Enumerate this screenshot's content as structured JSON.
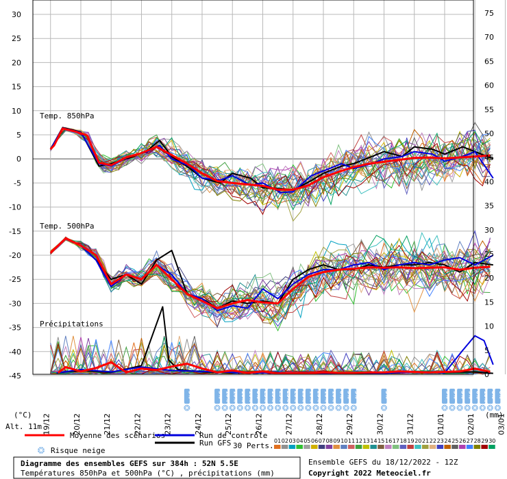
{
  "chart_data": {
    "type": "line",
    "title": "Diagramme des ensembles GEFS sur 384h : 52N 5.5E",
    "subtitle": "Températures 850hPa et 500hPa (°C) , précipitations (mm)",
    "run_info": "Ensemble GEFS du 18/12/2022 - 12Z",
    "copyright": "Copyright 2022 Meteociel.fr",
    "left_axis": {
      "unit_label": "(°C)",
      "ylim": [
        -45,
        30
      ],
      "ticks": [
        30,
        25,
        20,
        15,
        10,
        5,
        0,
        -5,
        -10,
        -15,
        -20,
        -25,
        -30,
        -35,
        -40,
        -45
      ]
    },
    "right_axis": {
      "unit_label": "(mm)",
      "ylim": [
        0,
        75
      ],
      "ticks": [
        75,
        70,
        65,
        60,
        55,
        50,
        45,
        40,
        35,
        30,
        25,
        20,
        15,
        10,
        5,
        0
      ]
    },
    "altitude_label": "Alt. 11m",
    "x_dates": [
      "19/12",
      "20/12",
      "21/12",
      "22/12",
      "23/12",
      "24/12",
      "25/12",
      "26/12",
      "27/12",
      "28/12",
      "29/12",
      "30/12",
      "31/12",
      "01/01",
      "02/01",
      "03/01"
    ],
    "panel_labels": {
      "t850": "Temp. 850hPa",
      "t500": "Temp. 500hPa",
      "precip": "Précipitations"
    },
    "legend": {
      "mean": "Moyenne des scénarios",
      "control": "Run de contrôle",
      "gfs": "Run GFS",
      "perts": "30 Perts.",
      "snow": "Risque neige",
      "pert_numbers": [
        "01",
        "02",
        "03",
        "04",
        "05",
        "06",
        "07",
        "08",
        "09",
        "10",
        "11",
        "12",
        "13",
        "14",
        "15",
        "16",
        "17",
        "18",
        "19",
        "20",
        "21",
        "22",
        "23",
        "24",
        "25",
        "26",
        "27",
        "28",
        "29",
        "30"
      ]
    },
    "colors": {
      "mean": "#ff0000",
      "control": "#0000dd",
      "gfs": "#000000",
      "grid": "#b8b8b8",
      "snow": "#7fb4e8",
      "perts": [
        "#e07020",
        "#909090",
        "#00a0c0",
        "#30c030",
        "#a0a0a0",
        "#d0b000",
        "#404080",
        "#8040a0",
        "#e09040",
        "#6080c0",
        "#d06060",
        "#40a040",
        "#c0c000",
        "#209090",
        "#806040",
        "#c080c0",
        "#80c080",
        "#6060c0",
        "#c04040",
        "#40c0c0",
        "#a0a040",
        "#e0b080",
        "#4040c0",
        "#c06000",
        "#606060",
        "#b040b0",
        "#4080ff",
        "#808000",
        "#a00000",
        "#00a060"
      ]
    },
    "series_mean": {
      "t850": [
        [
          0,
          2
        ],
        [
          0.12,
          2.8
        ],
        [
          0.4,
          6.3
        ],
        [
          0.8,
          5.7
        ],
        [
          1.2,
          4.9
        ],
        [
          1.6,
          -0.8
        ],
        [
          2,
          -1.3
        ],
        [
          2.5,
          0.3
        ],
        [
          3,
          1.2
        ],
        [
          3.5,
          2.5
        ],
        [
          4,
          0.8
        ],
        [
          4.5,
          -1
        ],
        [
          5,
          -3
        ],
        [
          5.5,
          -4.6
        ],
        [
          6,
          -5
        ],
        [
          6.5,
          -5.3
        ],
        [
          7,
          -5.6
        ],
        [
          7.5,
          -6.4
        ],
        [
          8,
          -6.4
        ],
        [
          8.5,
          -5.5
        ],
        [
          9,
          -3.8
        ],
        [
          9.5,
          -2.7
        ],
        [
          10,
          -1.7
        ],
        [
          10.5,
          -1
        ],
        [
          11,
          -0.6
        ],
        [
          11.5,
          -0.2
        ],
        [
          12,
          0.2
        ],
        [
          12.5,
          0.3
        ],
        [
          13,
          0.1
        ],
        [
          13.5,
          0.3
        ],
        [
          14,
          0.5
        ],
        [
          14.5,
          0.7
        ]
      ],
      "t500": [
        [
          0,
          -19.5
        ],
        [
          0.5,
          -16.5
        ],
        [
          1,
          -18
        ],
        [
          1.5,
          -20
        ],
        [
          2,
          -26
        ],
        [
          2.5,
          -24
        ],
        [
          3,
          -25
        ],
        [
          3.5,
          -22
        ],
        [
          4,
          -25
        ],
        [
          4.5,
          -28
        ],
        [
          5,
          -29.5
        ],
        [
          5.5,
          -31
        ],
        [
          6,
          -30
        ],
        [
          6.5,
          -29.3
        ],
        [
          7,
          -29.8
        ],
        [
          7.5,
          -30
        ],
        [
          8,
          -27
        ],
        [
          8.5,
          -24.5
        ],
        [
          9,
          -23.5
        ],
        [
          9.5,
          -23
        ],
        [
          10,
          -22.8
        ],
        [
          10.5,
          -22.5
        ],
        [
          11,
          -22.6
        ],
        [
          11.5,
          -22.5
        ],
        [
          12,
          -22.7
        ],
        [
          12.5,
          -22.6
        ],
        [
          13,
          -22.5
        ],
        [
          13.5,
          -23
        ],
        [
          14,
          -22.6
        ],
        [
          14.5,
          -22.4
        ]
      ],
      "precip": [
        [
          0.25,
          0.3
        ],
        [
          0.5,
          1.5
        ],
        [
          1,
          0.6
        ],
        [
          1.5,
          1.3
        ],
        [
          2,
          2.5
        ],
        [
          2.5,
          0.4
        ],
        [
          3,
          1.2
        ],
        [
          3.5,
          0.9
        ],
        [
          4,
          1.6
        ],
        [
          4.5,
          2.2
        ],
        [
          5,
          1.2
        ],
        [
          5.5,
          0.4
        ],
        [
          6,
          0.8
        ],
        [
          6.5,
          0.3
        ],
        [
          7,
          0.6
        ],
        [
          7.5,
          0.2
        ],
        [
          8,
          0.3
        ],
        [
          8.5,
          0.2
        ],
        [
          9,
          0.4
        ],
        [
          9.5,
          0.3
        ],
        [
          10,
          0.3
        ],
        [
          10.5,
          0.4
        ],
        [
          11,
          0.4
        ],
        [
          11.5,
          0.6
        ],
        [
          12,
          0.5
        ],
        [
          12.5,
          0.4
        ],
        [
          13,
          0.5
        ],
        [
          13.5,
          0.6
        ],
        [
          14,
          1.2
        ],
        [
          14.5,
          0.5
        ]
      ]
    },
    "series_control": {
      "t850": [
        [
          0,
          2
        ],
        [
          0.4,
          6.4
        ],
        [
          1,
          5.5
        ],
        [
          1.6,
          -1
        ],
        [
          2,
          -1.5
        ],
        [
          2.6,
          0.5
        ],
        [
          3.2,
          1.5
        ],
        [
          3.6,
          2.8
        ],
        [
          4,
          0
        ],
        [
          4.6,
          -1.5
        ],
        [
          5,
          -4
        ],
        [
          5.6,
          -4.4
        ],
        [
          6,
          -3.5
        ],
        [
          6.6,
          -5.5
        ],
        [
          7,
          -5
        ],
        [
          7.6,
          -7
        ],
        [
          8,
          -6.8
        ],
        [
          8.6,
          -3.5
        ],
        [
          9,
          -2.5
        ],
        [
          9.6,
          -1
        ],
        [
          10,
          -2
        ],
        [
          10.6,
          -1
        ],
        [
          11,
          0
        ],
        [
          11.6,
          0.5
        ],
        [
          12,
          1.5
        ],
        [
          12.6,
          1
        ],
        [
          13,
          -0.5
        ],
        [
          13.6,
          0.5
        ],
        [
          14,
          1.5
        ],
        [
          14.6,
          -4
        ]
      ],
      "t500": [
        [
          0,
          -19.5
        ],
        [
          0.5,
          -16.5
        ],
        [
          1,
          -18
        ],
        [
          1.5,
          -21
        ],
        [
          2,
          -26.5
        ],
        [
          2.5,
          -24
        ],
        [
          3,
          -25
        ],
        [
          3.5,
          -22
        ],
        [
          4,
          -24
        ],
        [
          4.5,
          -28
        ],
        [
          5,
          -29
        ],
        [
          5.5,
          -31.5
        ],
        [
          6,
          -30.5
        ],
        [
          6.5,
          -31
        ],
        [
          7,
          -27
        ],
        [
          7.5,
          -29
        ],
        [
          8,
          -26
        ],
        [
          8.5,
          -24
        ],
        [
          9,
          -23
        ],
        [
          9.5,
          -23
        ],
        [
          10,
          -22
        ],
        [
          10.5,
          -21.5
        ],
        [
          11,
          -23
        ],
        [
          11.5,
          -22
        ],
        [
          12,
          -21.5
        ],
        [
          12.5,
          -22
        ],
        [
          13,
          -21
        ],
        [
          13.5,
          -20.5
        ],
        [
          14,
          -22
        ],
        [
          14.6,
          -20
        ]
      ],
      "precip": [
        [
          0.2,
          0.3
        ],
        [
          1,
          1
        ],
        [
          2,
          0.5
        ],
        [
          3,
          1.5
        ],
        [
          4,
          0.8
        ],
        [
          5,
          0.6
        ],
        [
          6,
          0.4
        ],
        [
          7,
          0.3
        ],
        [
          8,
          0.4
        ],
        [
          9,
          0.2
        ],
        [
          10,
          0.3
        ],
        [
          11,
          0.2
        ],
        [
          12,
          0.5
        ],
        [
          13,
          0.3
        ],
        [
          13.6,
          5
        ],
        [
          14,
          8
        ],
        [
          14.3,
          7
        ],
        [
          14.6,
          2
        ]
      ]
    },
    "series_gfs": {
      "t850": [
        [
          0,
          2
        ],
        [
          0.4,
          6.5
        ],
        [
          1,
          5.6
        ],
        [
          1.6,
          -1.5
        ],
        [
          2,
          -1
        ],
        [
          2.6,
          0.2
        ],
        [
          3.2,
          1.8
        ],
        [
          3.6,
          3.8
        ],
        [
          4,
          0.5
        ],
        [
          4.6,
          -2
        ],
        [
          5,
          -4
        ],
        [
          5.6,
          -5
        ],
        [
          6,
          -3
        ],
        [
          6.6,
          -4
        ],
        [
          7,
          -6
        ],
        [
          7.6,
          -6.2
        ],
        [
          8,
          -6.5
        ],
        [
          8.6,
          -4.5
        ],
        [
          9,
          -3
        ],
        [
          9.6,
          -1.5
        ],
        [
          10,
          -1
        ],
        [
          10.6,
          0.5
        ],
        [
          11,
          1.5
        ],
        [
          11.6,
          0.5
        ],
        [
          12,
          2.5
        ],
        [
          12.6,
          2
        ],
        [
          13,
          1
        ],
        [
          13.6,
          2.5
        ],
        [
          14,
          1.5
        ],
        [
          14.6,
          0
        ]
      ],
      "t500": [
        [
          0,
          -19.5
        ],
        [
          0.5,
          -16.5
        ],
        [
          1,
          -18
        ],
        [
          1.5,
          -21
        ],
        [
          2,
          -25
        ],
        [
          2.5,
          -24
        ],
        [
          3,
          -26
        ],
        [
          3.5,
          -21
        ],
        [
          4,
          -19
        ],
        [
          4.5,
          -28
        ],
        [
          5,
          -29
        ],
        [
          5.5,
          -31
        ],
        [
          6,
          -29.5
        ],
        [
          6.5,
          -30
        ],
        [
          7,
          -29.5
        ],
        [
          7.5,
          -30
        ],
        [
          8,
          -25
        ],
        [
          8.5,
          -23
        ],
        [
          9,
          -22
        ],
        [
          9.5,
          -23
        ],
        [
          10,
          -23
        ],
        [
          10.5,
          -22
        ],
        [
          11,
          -22.5
        ],
        [
          11.5,
          -22
        ],
        [
          12,
          -22
        ],
        [
          12.5,
          -21.5
        ],
        [
          13,
          -22
        ],
        [
          13.5,
          -23.5
        ],
        [
          14,
          -21.5
        ],
        [
          14.6,
          -22
        ]
      ],
      "precip": [
        [
          0.2,
          0.3
        ],
        [
          1,
          0.8
        ],
        [
          2,
          0.4
        ],
        [
          3,
          1.8
        ],
        [
          3.7,
          14
        ],
        [
          3.9,
          3
        ],
        [
          4.2,
          1
        ],
        [
          5,
          0.5
        ],
        [
          6,
          0.3
        ],
        [
          7,
          0.6
        ],
        [
          8,
          0.2
        ],
        [
          9,
          0.3
        ],
        [
          10,
          0.2
        ],
        [
          11,
          0.3
        ],
        [
          12,
          0.5
        ],
        [
          13,
          0.4
        ],
        [
          14,
          0.5
        ],
        [
          14.6,
          0.2
        ]
      ]
    },
    "snow_risk": [
      {
        "day": 4.5,
        "pct": "3%"
      },
      {
        "day": 5.5,
        "pct": "3%"
      },
      {
        "day": 5.75,
        "pct": "10%"
      },
      {
        "day": 6.0,
        "pct": "16%"
      },
      {
        "day": 6.25,
        "pct": "16%"
      },
      {
        "day": 6.5,
        "pct": "16%"
      },
      {
        "day": 6.75,
        "pct": "6%"
      },
      {
        "day": 7.0,
        "pct": "23%"
      },
      {
        "day": 7.25,
        "pct": "19%"
      },
      {
        "day": 7.5,
        "pct": "23%"
      },
      {
        "day": 7.75,
        "pct": "23%"
      },
      {
        "day": 8.0,
        "pct": "26%"
      },
      {
        "day": 8.25,
        "pct": "23%"
      },
      {
        "day": 8.5,
        "pct": "16%"
      },
      {
        "day": 8.75,
        "pct": "23%"
      },
      {
        "day": 9.0,
        "pct": "16%"
      },
      {
        "day": 9.25,
        "pct": "16%"
      },
      {
        "day": 9.5,
        "pct": "6%"
      },
      {
        "day": 9.75,
        "pct": "3%"
      },
      {
        "day": 10.0,
        "pct": "3%"
      },
      {
        "day": 11.0,
        "pct": "3%"
      },
      {
        "day": 13.0,
        "pct": "3%"
      },
      {
        "day": 13.25,
        "pct": "3%"
      },
      {
        "day": 13.5,
        "pct": "3%"
      },
      {
        "day": 13.75,
        "pct": "3%"
      },
      {
        "day": 14.0,
        "pct": "6%"
      },
      {
        "day": 14.25,
        "pct": "10%"
      },
      {
        "day": 14.5,
        "pct": "6%"
      },
      {
        "day": 14.75,
        "pct": "6%"
      }
    ]
  }
}
